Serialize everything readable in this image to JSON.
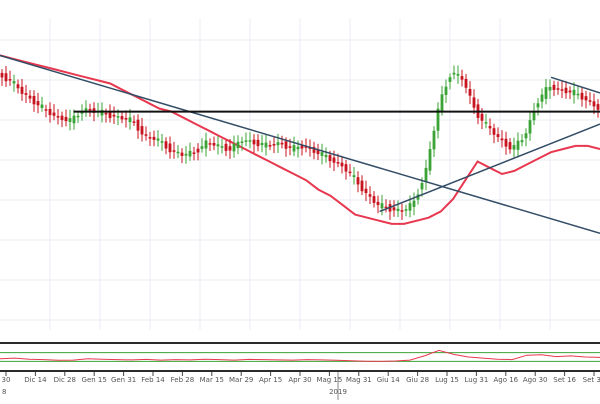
{
  "chart_data": {
    "type": "line",
    "title": "",
    "xlabel": "",
    "ylabel": "",
    "grid": true,
    "colors": {
      "bullish": "#3aa335",
      "bearish": "#c8141e",
      "moving_average": "#e8384f",
      "trendline": "#334d66",
      "horizontal_level": "#111111",
      "rsi_line": "#e8384f",
      "rsi_level": "#3aa335",
      "grid": "#e9eef5"
    },
    "price_axis_range": [
      0,
      100
    ],
    "x_tick_labels": [
      "30",
      "Dic 14",
      "Dic 28",
      "Gen 15",
      "Gen 31",
      "Feb 14",
      "Feb 28",
      "Mar 15",
      "Mar 29",
      "Apr 15",
      "Apr 30",
      "Mag 15",
      "Mag 31",
      "Giu 14",
      "Giu 28",
      "Lug 15",
      "Lug 31",
      "Ago 16",
      "Ago 30",
      "Set 16",
      "Set 30"
    ],
    "year_labels": [
      "8",
      "2019"
    ],
    "series": [
      {
        "values": [
          82,
          80,
          76,
          73,
          70,
          68,
          67,
          71,
          70,
          69,
          68,
          67,
          62,
          61,
          58,
          56,
          57,
          60,
          59,
          58,
          61,
          60,
          59,
          60,
          58,
          59,
          57,
          55,
          53,
          49,
          44,
          40,
          39,
          38,
          41,
          52,
          72,
          83,
          80,
          70,
          65,
          61,
          58,
          62,
          73,
          78,
          77,
          76,
          74,
          71
        ]
      },
      {
        "values": [
          88,
          87,
          86,
          85,
          84,
          83,
          82,
          81,
          80,
          79,
          77,
          75,
          73,
          71,
          70,
          68,
          66,
          64,
          62,
          60,
          58,
          56,
          54,
          52,
          50,
          48,
          45,
          43,
          40,
          37,
          36,
          35,
          34,
          34,
          35,
          36,
          38,
          42,
          48,
          54,
          52,
          50,
          51,
          53,
          55,
          57,
          58,
          59,
          59,
          58
        ]
      }
    ],
    "lines": [
      {
        "name": "descending trendline",
        "from": [
          0,
          88
        ],
        "to": [
          49,
          31
        ]
      },
      {
        "name": "rising trendline",
        "from": [
          31,
          38
        ],
        "to": [
          49,
          66
        ]
      },
      {
        "name": "upper trendline",
        "from": [
          45,
          81
        ],
        "to": [
          49,
          76
        ]
      },
      {
        "name": "horizontal resistance",
        "from": [
          6,
          70
        ],
        "to": [
          49,
          70
        ]
      }
    ],
    "rsi": {
      "range": [
        0,
        100
      ],
      "upper_level": 70,
      "lower_level": 30,
      "values": [
        42,
        45,
        40,
        38,
        35,
        36,
        42,
        40,
        38,
        37,
        39,
        36,
        38,
        37,
        40,
        38,
        36,
        39,
        38,
        37,
        36,
        38,
        37,
        35,
        33,
        31,
        30,
        32,
        36,
        55,
        80,
        62,
        50,
        45,
        40,
        38,
        58,
        60,
        52,
        55,
        50,
        48
      ]
    }
  }
}
